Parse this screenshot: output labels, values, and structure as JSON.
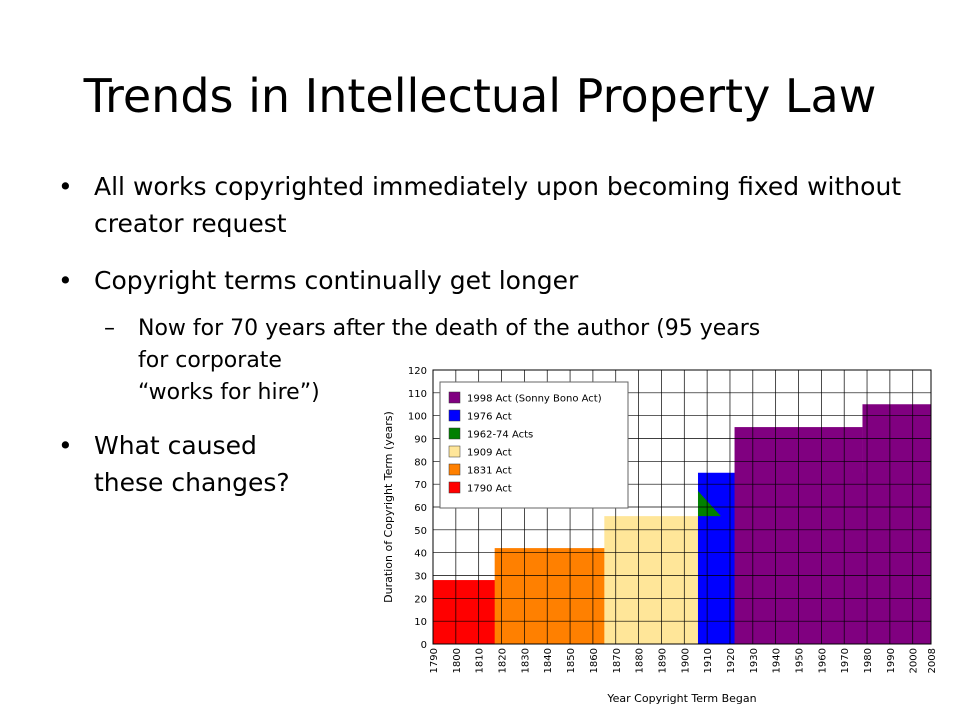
{
  "slide": {
    "title": "Trends in Intellectual Property Law",
    "bullets": [
      "All works copyrighted immediately upon becoming fixed without creator request",
      "Copyright terms continually get longer"
    ],
    "sub_bullet": [
      "Now for 70 years after the death of the author (95 years",
      "for corporate",
      "“works for hire”)"
    ],
    "question": [
      "What caused",
      "these changes?"
    ],
    "bullet_char": "•",
    "dash_char": "–"
  },
  "chart_data": {
    "type": "area",
    "xlabel": "Year Copyright Term Began",
    "ylabel": "Duration of Copyright Term (years)",
    "xlim": [
      1790,
      2008
    ],
    "ylim": [
      0,
      120
    ],
    "x_ticks": [
      1790,
      1800,
      1810,
      1820,
      1830,
      1840,
      1850,
      1860,
      1870,
      1880,
      1890,
      1900,
      1910,
      1920,
      1930,
      1940,
      1950,
      1960,
      1970,
      1980,
      1990,
      2000,
      2008
    ],
    "y_ticks": [
      0,
      10,
      20,
      30,
      40,
      50,
      60,
      70,
      80,
      90,
      100,
      110,
      120
    ],
    "grid": true,
    "legend_position": "top-left",
    "series": [
      {
        "name": "1998 Act (Sonny Bono Act)",
        "color": "#800080",
        "segments": [
          {
            "x0": 1922,
            "x1": 1978,
            "y": 95
          },
          {
            "x0": 1978,
            "x1": 2008,
            "y": 105
          }
        ]
      },
      {
        "name": "1976 Act",
        "color": "#0000ff",
        "segments": [
          {
            "x0": 1906,
            "x1": 1978,
            "y": 75
          },
          {
            "x0": 1978,
            "x1": 1998,
            "y": 85
          }
        ]
      },
      {
        "name": "1962-74 Acts",
        "color": "#008000",
        "segments": [
          {
            "x0": 1906,
            "x1": 1916,
            "y": 67
          }
        ]
      },
      {
        "name": "1909 Act",
        "color": "#ffe699",
        "segments": [
          {
            "x0": 1865,
            "x1": 1978,
            "y": 56
          }
        ]
      },
      {
        "name": "1831 Act",
        "color": "#ff8000",
        "segments": [
          {
            "x0": 1817,
            "x1": 1908,
            "y": 42
          }
        ]
      },
      {
        "name": "1790 Act",
        "color": "#ff0000",
        "segments": [
          {
            "x0": 1790,
            "x1": 1831,
            "y": 28
          }
        ]
      }
    ]
  }
}
